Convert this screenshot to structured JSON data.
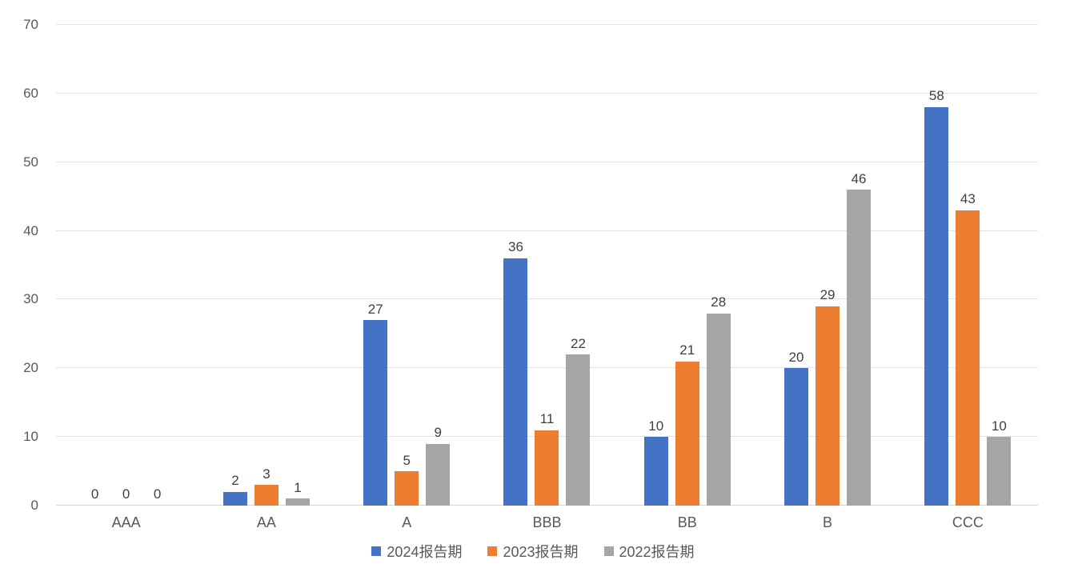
{
  "chart_data": {
    "type": "bar",
    "categories": [
      "AAA",
      "AA",
      "A",
      "BBB",
      "BB",
      "B",
      "CCC"
    ],
    "series": [
      {
        "name": "2024报告期",
        "color": "#4472C4",
        "values": [
          0,
          2,
          27,
          36,
          10,
          20,
          58
        ]
      },
      {
        "name": "2023报告期",
        "color": "#ED7D31",
        "values": [
          0,
          3,
          5,
          11,
          21,
          29,
          43
        ]
      },
      {
        "name": "2022报告期",
        "color": "#A5A5A5",
        "values": [
          0,
          1,
          9,
          22,
          28,
          46,
          10
        ]
      }
    ],
    "title": "",
    "xlabel": "",
    "ylabel": "",
    "ylim": [
      0,
      70
    ],
    "yticks": [
      0,
      10,
      20,
      30,
      40,
      50,
      60,
      70
    ],
    "grid": true,
    "legend_position": "bottom",
    "data_labels": true
  },
  "style": {
    "background": "#FFFFFF",
    "gridline_color": "#E2E2E2",
    "baseline_color": "#D4D4D4",
    "axis_text_color": "#595959",
    "value_label_color": "#404040"
  }
}
